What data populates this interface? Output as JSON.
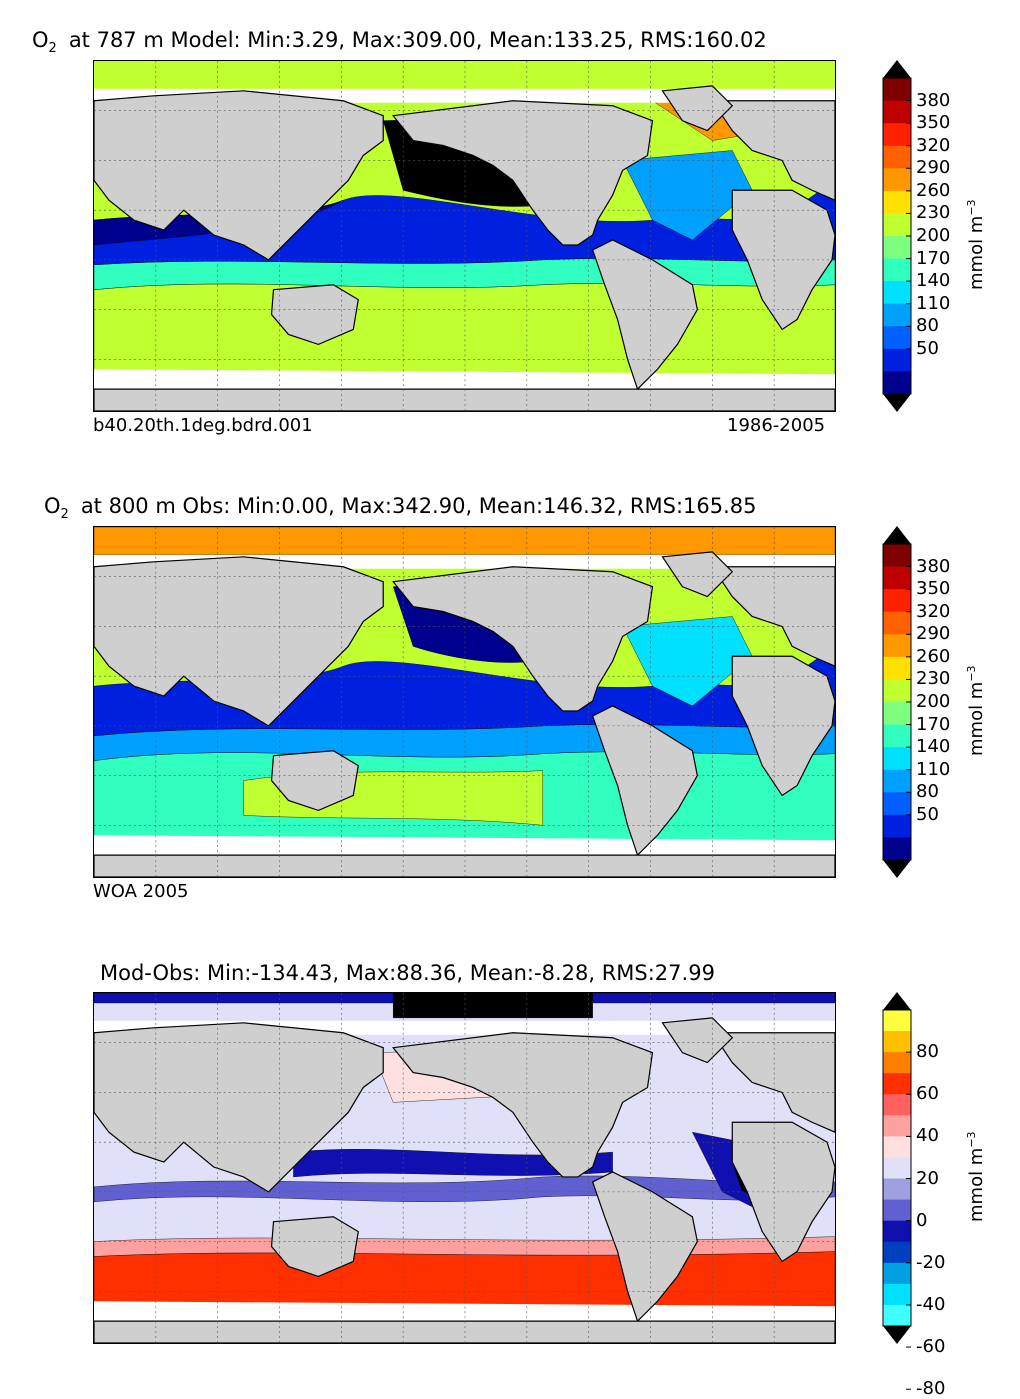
{
  "panels": [
    {
      "id": "model",
      "var_label": "O",
      "var_sub": "2",
      "title_text": "at 787 m Model: Min:3.29, Max:309.00, Mean:133.25, RMS:160.02",
      "bottom_left": "b40.20th.1deg.bdrd.001",
      "bottom_right": "1986-2005",
      "colorbar": {
        "ticks": [
          "380",
          "350",
          "320",
          "290",
          "260",
          "230",
          "200",
          "170",
          "140",
          "110",
          "80",
          "50"
        ],
        "colors": [
          "#7f0000",
          "#c00000",
          "#ff2000",
          "#ff6000",
          "#ff9800",
          "#ffe000",
          "#c0ff30",
          "#7fff7f",
          "#30ffc0",
          "#00e0ff",
          "#00a0ff",
          "#0060ff",
          "#0020e0",
          "#00008f"
        ],
        "extend_top_color": "#000000",
        "extend_bottom_color": "#000000",
        "unit_text": "mmol m",
        "unit_exp": "−3"
      }
    },
    {
      "id": "obs",
      "var_label": "O",
      "var_sub": "2",
      "title_text": "at 800 m Obs: Min:0.00, Max:342.90, Mean:146.32, RMS:165.85",
      "bottom_left": "WOA 2005",
      "bottom_right": "",
      "colorbar": {
        "ticks": [
          "380",
          "350",
          "320",
          "290",
          "260",
          "230",
          "200",
          "170",
          "140",
          "110",
          "80",
          "50"
        ],
        "colors": [
          "#7f0000",
          "#c00000",
          "#ff2000",
          "#ff6000",
          "#ff9800",
          "#ffe000",
          "#c0ff30",
          "#7fff7f",
          "#30ffc0",
          "#00e0ff",
          "#00a0ff",
          "#0060ff",
          "#0020e0",
          "#00008f"
        ],
        "extend_top_color": "#000000",
        "extend_bottom_color": "#000000",
        "unit_text": "mmol m",
        "unit_exp": "−3"
      }
    },
    {
      "id": "diff",
      "var_label": "",
      "var_sub": "",
      "title_text": "Mod-Obs: Min:-134.43, Max:88.36, Mean:-8.28, RMS:27.99",
      "bottom_left": "",
      "bottom_right": "",
      "colorbar": {
        "ticks": [
          "80",
          "60",
          "40",
          "20",
          "0",
          "-20",
          "-40",
          "-60",
          "-80"
        ],
        "colors": [
          "#ffff40",
          "#ffc000",
          "#ff8000",
          "#ff3000",
          "#ff6060",
          "#ffa0a0",
          "#ffe0e0",
          "#e0e0f8",
          "#a0a0e0",
          "#6060d0",
          "#1010b0",
          "#0040c0",
          "#00a0e0",
          "#00e0ff",
          "#40ffff"
        ],
        "extend_top_color": "#000000",
        "extend_bottom_color": "#000000",
        "unit_text": "mmol m",
        "unit_exp": "−3"
      }
    }
  ]
}
